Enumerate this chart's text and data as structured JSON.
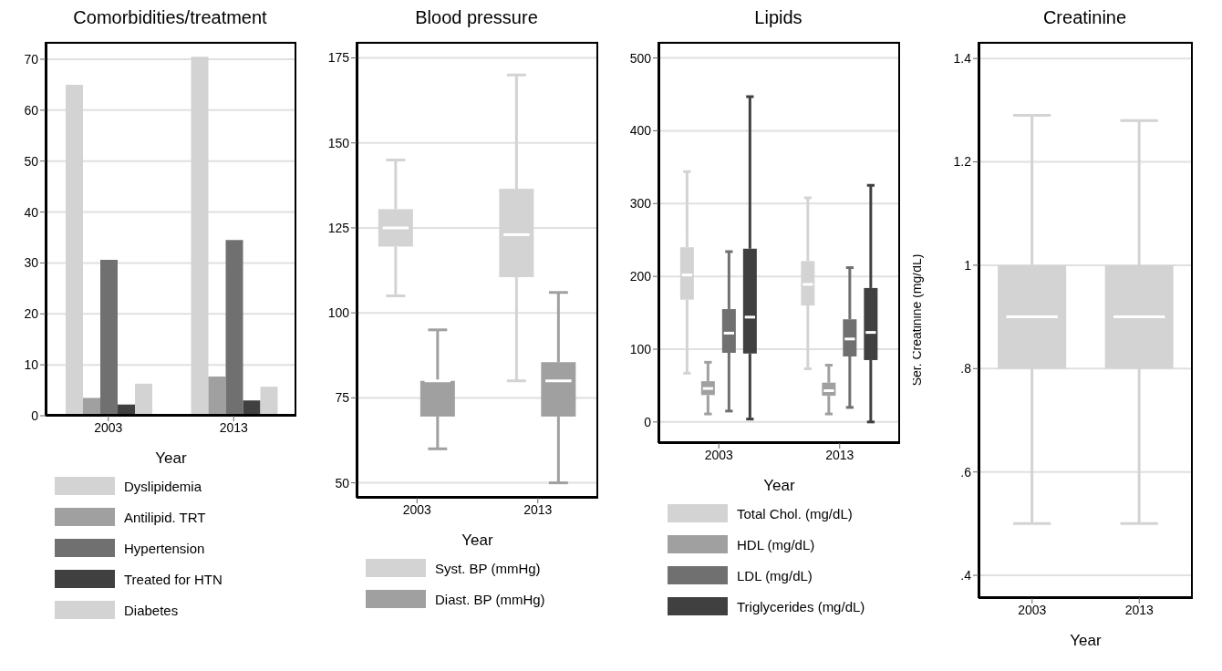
{
  "chart_data": [
    {
      "type": "bar",
      "title": "Comorbidities/treatment",
      "xlabel": "Year",
      "categories": [
        "2003",
        "2013"
      ],
      "series": [
        {
          "name": "Dyslipidemia",
          "color": "#d3d3d3",
          "values": [
            65,
            70.5
          ]
        },
        {
          "name": "Antilipid. TRT",
          "color": "#a0a0a0",
          "values": [
            3.5,
            7.7
          ]
        },
        {
          "name": "Hypertension",
          "color": "#707070",
          "values": [
            30.6,
            34.5
          ]
        },
        {
          "name": "Treated for HTN",
          "color": "#404040",
          "values": [
            2.2,
            3
          ]
        },
        {
          "name": "Diabetes",
          "color": "#d3d3d3",
          "values": [
            6.3,
            5.7
          ]
        }
      ],
      "ylim": [
        0,
        73.4
      ],
      "yticks": [
        0,
        10,
        20,
        30,
        40,
        50,
        60,
        70
      ],
      "grid": "y",
      "legend": "bottom"
    },
    {
      "type": "box",
      "title": "Blood pressure",
      "xlabel": "Year",
      "categories": [
        "2003",
        "2013"
      ],
      "series": [
        {
          "name": "Syst. BP (mmHg)",
          "color": "#d3d3d3",
          "boxes": [
            {
              "low": 105,
              "q1": 119.5,
              "median": 125,
              "q3": 130.5,
              "high": 145
            },
            {
              "low": 80,
              "q1": 110.5,
              "median": 123,
              "q3": 136.5,
              "high": 170
            }
          ]
        },
        {
          "name": "Diast. BP (mmHg)",
          "color": "#a0a0a0",
          "boxes": [
            {
              "low": 60,
              "q1": 69.5,
              "median": 80,
              "q3": 80,
              "high": 95
            },
            {
              "low": 50,
              "q1": 69.5,
              "median": 80,
              "q3": 85.5,
              "high": 106
            }
          ]
        }
      ],
      "ylim": [
        45.6,
        179.7
      ],
      "yticks": [
        50,
        75,
        100,
        125,
        150,
        175
      ],
      "grid": "y",
      "legend": "bottom"
    },
    {
      "type": "box",
      "title": "Lipids",
      "xlabel": "Year",
      "categories": [
        "2003",
        "2013"
      ],
      "series": [
        {
          "name": "Total Chol. (mg/dL)",
          "color": "#d3d3d3",
          "boxes": [
            {
              "low": 67,
              "q1": 168,
              "median": 202,
              "q3": 240,
              "high": 344
            },
            {
              "low": 73,
              "q1": 160,
              "median": 189,
              "q3": 221,
              "high": 308
            }
          ]
        },
        {
          "name": "HDL (mg/dL)",
          "color": "#a0a0a0",
          "boxes": [
            {
              "low": 11,
              "q1": 37,
              "median": 46,
              "q3": 56,
              "high": 82
            },
            {
              "low": 11,
              "q1": 36,
              "median": 43,
              "q3": 54,
              "high": 78
            }
          ]
        },
        {
          "name": "LDL (mg/dL)",
          "color": "#707070",
          "boxes": [
            {
              "low": 15,
              "q1": 95,
              "median": 122,
              "q3": 155,
              "high": 234
            },
            {
              "low": 20,
              "q1": 90,
              "median": 114,
              "q3": 141,
              "high": 212
            }
          ]
        },
        {
          "name": "Triglycerides (mg/dL)",
          "color": "#404040",
          "boxes": [
            {
              "low": 4,
              "q1": 94,
              "median": 144,
              "q3": 238,
              "high": 447
            },
            {
              "low": 0,
              "q1": 85,
              "median": 123,
              "q3": 184,
              "high": 325
            }
          ]
        }
      ],
      "ylim": [
        -29,
        522
      ],
      "yticks": [
        0,
        100,
        200,
        300,
        400,
        500
      ],
      "grid": "y",
      "legend": "bottom"
    },
    {
      "type": "box",
      "title": "Creatinine",
      "xlabel": "Year",
      "ylabel": "Ser. Creatinine (mg/dL)",
      "categories": [
        "2003",
        "2013"
      ],
      "series": [
        {
          "color": "#d3d3d3",
          "boxes": [
            {
              "low": 0.5,
              "q1": 0.8,
              "median": 0.9,
              "q3": 1,
              "high": 1.29
            },
            {
              "low": 0.5,
              "q1": 0.8,
              "median": 0.9,
              "q3": 1,
              "high": 1.28
            }
          ]
        }
      ],
      "ylim": [
        0.356,
        1.432
      ],
      "yticks": [
        {
          "value": 0.4,
          "label": ".4"
        },
        {
          "value": 0.6,
          "label": ".6"
        },
        {
          "value": 0.8,
          "label": ".8"
        },
        1,
        1.2,
        1.4
      ],
      "grid": "y"
    }
  ]
}
